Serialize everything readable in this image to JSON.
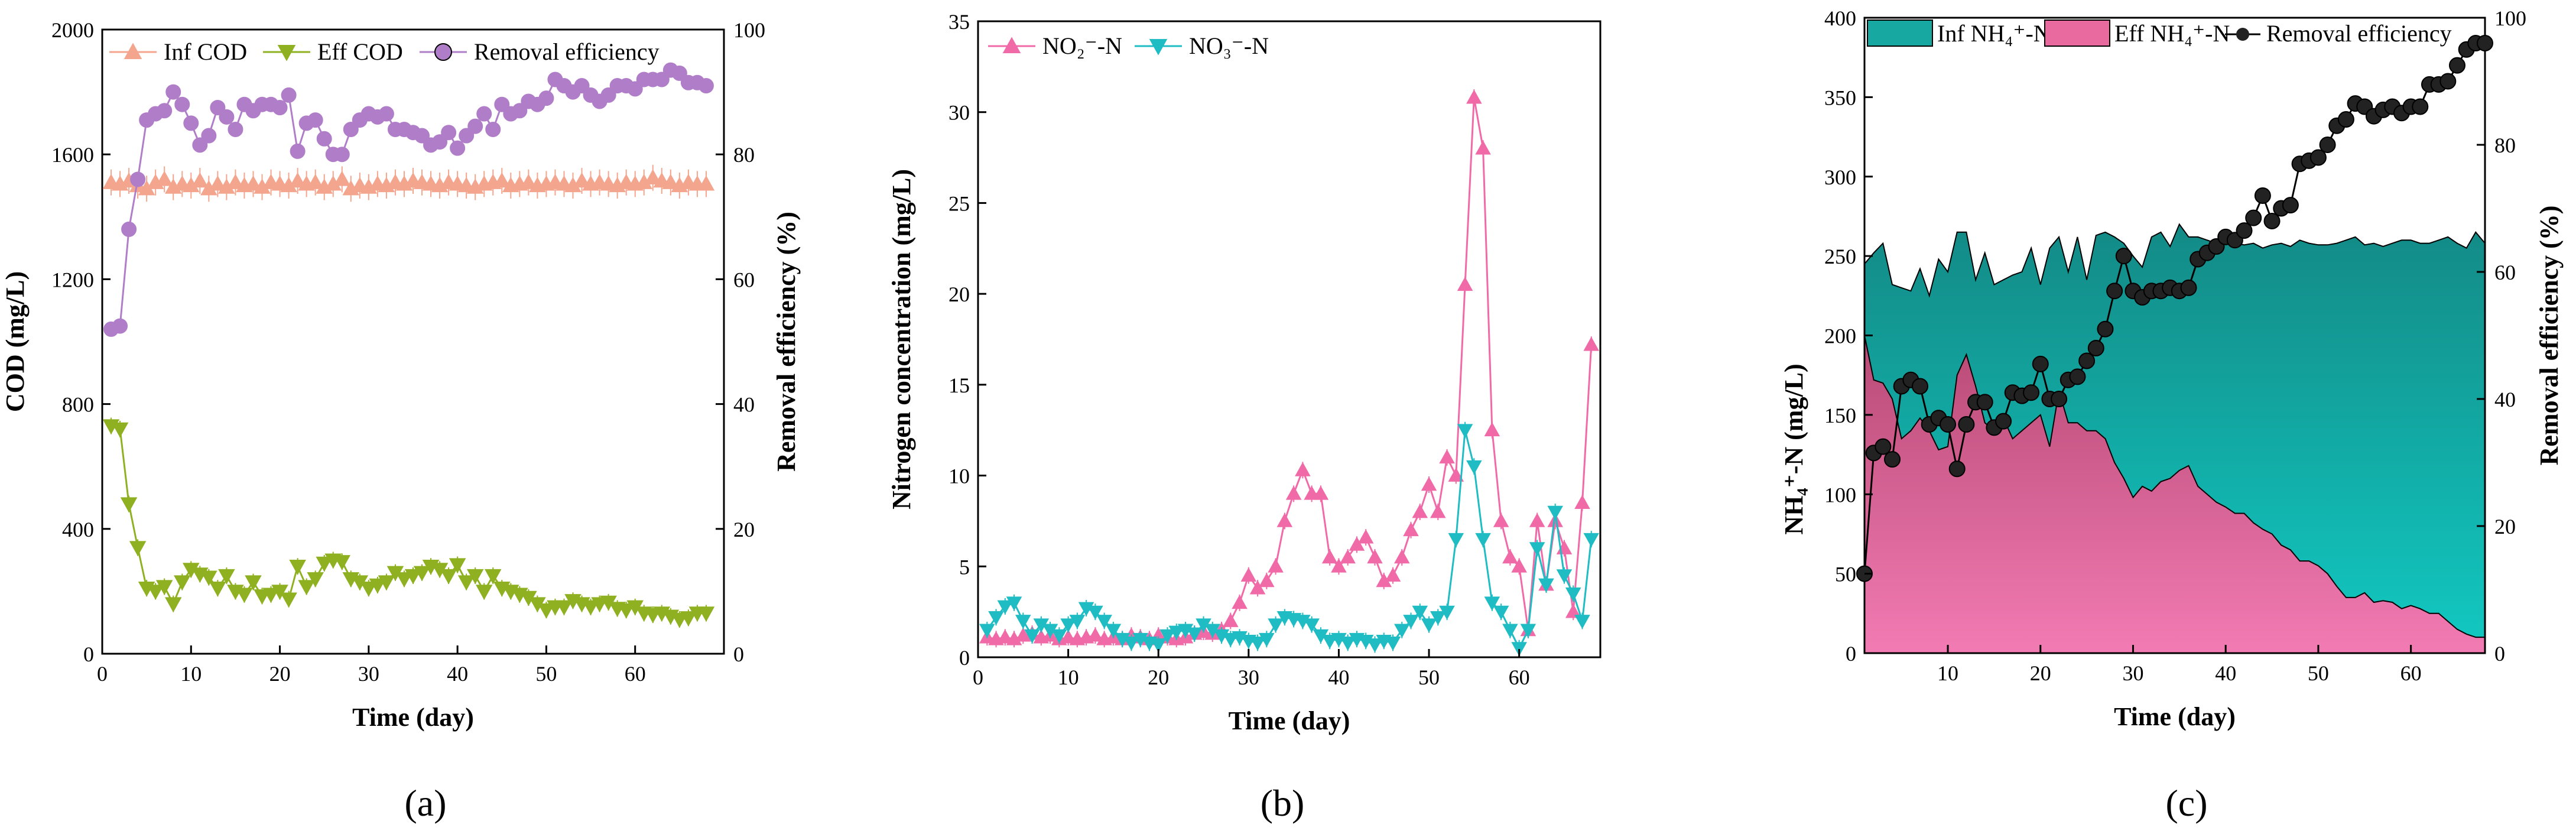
{
  "chart_data": [
    {
      "id": "a",
      "type": "line",
      "panel_label": "(a)",
      "xlabel": "Time (day)",
      "ylabel": "COD (mg/L)",
      "y2label": "Removal efficiency (%)",
      "xlim": [
        0,
        70
      ],
      "ylim": [
        0,
        2000
      ],
      "y2lim": [
        0,
        100
      ],
      "xticks": [
        0,
        10,
        20,
        30,
        40,
        50,
        60
      ],
      "yticks": [
        0,
        400,
        800,
        1200,
        1600,
        2000
      ],
      "y2ticks": [
        0,
        20,
        40,
        60,
        80,
        100
      ],
      "legend": [
        "Inf COD",
        "Eff COD",
        "Removal efficiency"
      ],
      "colors": {
        "inf": "#f4a58e",
        "eff": "#8fb021",
        "rem": "#b07ec8"
      },
      "x": [
        1,
        2,
        3,
        4,
        5,
        6,
        7,
        8,
        9,
        10,
        11,
        12,
        13,
        14,
        15,
        16,
        17,
        18,
        19,
        20,
        21,
        22,
        23,
        24,
        25,
        26,
        27,
        28,
        29,
        30,
        31,
        32,
        33,
        34,
        35,
        36,
        37,
        38,
        39,
        40,
        41,
        42,
        43,
        44,
        45,
        46,
        47,
        48,
        49,
        50,
        51,
        52,
        53,
        54,
        55,
        56,
        57,
        58,
        59,
        60,
        61,
        62,
        63,
        64,
        65,
        66,
        67,
        68
      ],
      "series": [
        {
          "name": "Inf COD",
          "axis": "left",
          "marker": "triangle-up",
          "values": [
            1510,
            1505,
            1515,
            1500,
            1490,
            1510,
            1520,
            1495,
            1505,
            1500,
            1515,
            1490,
            1505,
            1495,
            1510,
            1500,
            1505,
            1495,
            1510,
            1505,
            1500,
            1515,
            1505,
            1510,
            1495,
            1505,
            1520,
            1490,
            1500,
            1495,
            1505,
            1500,
            1510,
            1505,
            1515,
            1510,
            1505,
            1500,
            1510,
            1505,
            1500,
            1495,
            1505,
            1510,
            1515,
            1500,
            1505,
            1510,
            1500,
            1505,
            1510,
            1505,
            1500,
            1515,
            1505,
            1510,
            1505,
            1500,
            1510,
            1505,
            1510,
            1525,
            1515,
            1510,
            1500,
            1510,
            1505,
            1505
          ]
        },
        {
          "name": "Eff COD",
          "axis": "left",
          "marker": "triangle-down",
          "values": [
            730,
            720,
            480,
            340,
            210,
            200,
            215,
            160,
            230,
            270,
            255,
            245,
            210,
            250,
            200,
            190,
            230,
            185,
            190,
            200,
            175,
            280,
            215,
            240,
            290,
            300,
            295,
            240,
            230,
            210,
            220,
            230,
            260,
            240,
            250,
            260,
            280,
            270,
            250,
            285,
            230,
            250,
            200,
            250,
            210,
            200,
            190,
            180,
            160,
            140,
            150,
            150,
            170,
            160,
            150,
            160,
            165,
            145,
            140,
            150,
            130,
            125,
            130,
            120,
            110,
            115,
            130,
            130
          ]
        },
        {
          "name": "Removal efficiency",
          "axis": "right",
          "marker": "circle",
          "values": [
            52,
            52.5,
            68,
            76,
            85.5,
            86.5,
            87,
            90,
            88,
            85,
            81.5,
            83,
            87.5,
            86,
            84,
            88,
            87,
            88,
            88,
            87.5,
            89.5,
            80.5,
            85,
            85.5,
            82.5,
            80,
            80,
            84,
            85.5,
            86.5,
            86,
            86.5,
            84,
            84,
            83.5,
            83,
            81.5,
            82,
            83.5,
            81,
            83,
            84.5,
            86.5,
            84,
            88,
            86.5,
            87,
            88.5,
            88,
            89,
            92,
            91,
            90,
            91,
            89.5,
            88.5,
            89.5,
            91,
            91,
            90.5,
            92,
            92,
            92,
            93.5,
            93,
            91.5,
            91.5,
            91
          ]
        }
      ]
    },
    {
      "id": "b",
      "type": "line",
      "panel_label": "(b)",
      "xlabel": "Time (day)",
      "ylabel": "Nitrogen concentration (mg/L)",
      "xlim": [
        0,
        69
      ],
      "ylim": [
        0,
        35
      ],
      "xticks": [
        0,
        10,
        20,
        30,
        40,
        50,
        60
      ],
      "yticks": [
        0,
        5,
        10,
        15,
        20,
        25,
        30,
        35
      ],
      "legend": [
        "NO₂⁻-N",
        "NO₃⁻-N"
      ],
      "colors": {
        "no2": "#f06aa8",
        "no3": "#1fbcc4"
      },
      "x": [
        1,
        2,
        3,
        4,
        5,
        6,
        7,
        8,
        9,
        10,
        11,
        12,
        13,
        14,
        15,
        16,
        17,
        18,
        19,
        20,
        21,
        22,
        23,
        24,
        25,
        26,
        27,
        28,
        29,
        30,
        31,
        32,
        33,
        34,
        35,
        36,
        37,
        38,
        39,
        40,
        41,
        42,
        43,
        44,
        45,
        46,
        47,
        48,
        49,
        50,
        51,
        52,
        53,
        54,
        55,
        56,
        57,
        58,
        59,
        60,
        61,
        62,
        63,
        64,
        65,
        66,
        67,
        68
      ],
      "series": [
        {
          "name": "NO₂⁻-N",
          "marker": "triangle-up",
          "values": [
            1.1,
            1.0,
            1.1,
            1.0,
            1.2,
            1.3,
            1.1,
            1.2,
            1.0,
            1.1,
            1.0,
            1.1,
            1.2,
            1.0,
            1.1,
            1.0,
            1.2,
            1.1,
            1.0,
            1.2,
            1.1,
            1.0,
            1.1,
            1.3,
            1.4,
            1.3,
            1.5,
            2.0,
            3.0,
            4.5,
            3.8,
            4.2,
            5.0,
            7.5,
            9.0,
            10.3,
            9.0,
            9.0,
            5.5,
            5.0,
            5.5,
            6.2,
            6.6,
            5.5,
            4.2,
            4.5,
            5.5,
            7.0,
            8.0,
            9.5,
            8.0,
            11.0,
            10.0,
            20.5,
            30.8,
            28.0,
            12.5,
            7.5,
            5.5,
            5.0,
            1.5,
            7.5,
            4.0,
            7.5,
            6.0,
            2.5,
            8.5,
            17.2
          ]
        },
        {
          "name": "NO₃⁻-N",
          "marker": "triangle-down",
          "values": [
            1.5,
            2.2,
            2.8,
            3.0,
            2.0,
            1.2,
            1.8,
            1.5,
            1.2,
            1.8,
            2.0,
            2.7,
            2.5,
            2.0,
            1.5,
            1.0,
            0.8,
            1.0,
            0.8,
            0.7,
            1.2,
            1.4,
            1.5,
            1.3,
            1.8,
            1.5,
            1.2,
            1.0,
            1.1,
            0.9,
            0.8,
            1.0,
            1.8,
            2.2,
            2.1,
            2.0,
            1.8,
            1.2,
            0.9,
            1.0,
            0.8,
            1.0,
            0.9,
            0.7,
            0.9,
            0.8,
            1.5,
            2.0,
            2.5,
            1.8,
            2.2,
            2.5,
            6.5,
            12.5,
            10.5,
            6.5,
            3.0,
            2.5,
            1.5,
            0.5,
            1.5,
            6.0,
            4.0,
            8.0,
            4.5,
            3.5,
            2.0,
            6.5
          ]
        }
      ]
    },
    {
      "id": "c",
      "type": "area",
      "panel_label": "(c)",
      "xlabel": "Time (day)",
      "ylabel": "NH₄⁺-N (mg/L)",
      "y2label": "Removal efficiency (%)",
      "xlim": [
        1,
        68
      ],
      "ylim": [
        0,
        400
      ],
      "y2lim": [
        0,
        100
      ],
      "xticks": [
        10,
        20,
        30,
        40,
        50,
        60
      ],
      "yticks": [
        0,
        50,
        100,
        150,
        200,
        250,
        300,
        350,
        400
      ],
      "y2ticks": [
        0,
        20,
        40,
        60,
        80,
        100
      ],
      "legend": [
        "Inf NH₄⁺-N",
        "Eff NH₄⁺-N",
        "Removal efficiency"
      ],
      "colors": {
        "inf": "#17a8a2",
        "eff": "#e86a9e",
        "rem": "#000000"
      },
      "x": [
        1,
        2,
        3,
        4,
        5,
        6,
        7,
        8,
        9,
        10,
        11,
        12,
        13,
        14,
        15,
        16,
        17,
        18,
        19,
        20,
        21,
        22,
        23,
        24,
        25,
        26,
        27,
        28,
        29,
        30,
        31,
        32,
        33,
        34,
        35,
        36,
        37,
        38,
        39,
        40,
        41,
        42,
        43,
        44,
        45,
        46,
        47,
        48,
        49,
        50,
        51,
        52,
        53,
        54,
        55,
        56,
        57,
        58,
        59,
        60,
        61,
        62,
        63,
        64,
        65,
        66,
        67,
        68
      ],
      "series": [
        {
          "name": "Inf NH₄⁺-N",
          "axis": "left",
          "values": [
            245,
            252,
            258,
            232,
            230,
            228,
            242,
            225,
            248,
            240,
            265,
            265,
            235,
            252,
            232,
            235,
            238,
            240,
            255,
            232,
            255,
            262,
            240,
            262,
            235,
            263,
            265,
            262,
            258,
            250,
            243,
            262,
            265,
            256,
            270,
            262,
            262,
            260,
            258,
            262,
            258,
            257,
            258,
            255,
            257,
            258,
            256,
            260,
            258,
            257,
            257,
            258,
            260,
            262,
            257,
            258,
            256,
            258,
            260,
            260,
            258,
            258,
            260,
            262,
            258,
            255,
            265,
            258
          ]
        },
        {
          "name": "Eff NH₄⁺-N",
          "axis": "left",
          "values": [
            200,
            172,
            170,
            160,
            135,
            140,
            148,
            140,
            128,
            130,
            175,
            188,
            168,
            145,
            140,
            148,
            135,
            140,
            145,
            150,
            130,
            165,
            145,
            145,
            140,
            140,
            135,
            120,
            110,
            98,
            105,
            102,
            108,
            110,
            115,
            118,
            105,
            100,
            95,
            92,
            88,
            88,
            82,
            78,
            75,
            68,
            65,
            58,
            58,
            55,
            50,
            42,
            35,
            35,
            38,
            32,
            33,
            32,
            28,
            30,
            28,
            25,
            25,
            20,
            15,
            12,
            10,
            10
          ]
        },
        {
          "name": "Removal efficiency",
          "axis": "right",
          "marker": "circle",
          "values": [
            12.5,
            31.5,
            32.5,
            30.5,
            42,
            43,
            42,
            36,
            37,
            36,
            29,
            36,
            39.5,
            39.5,
            35.5,
            36.5,
            41,
            40.5,
            41,
            45.5,
            40,
            40,
            43,
            43.5,
            46,
            48,
            51,
            57,
            62.5,
            57,
            56,
            57,
            57,
            57.5,
            57,
            57.5,
            62,
            63,
            64,
            65.5,
            65,
            66.5,
            68.5,
            72,
            68,
            70,
            70.5,
            77,
            77.5,
            78,
            80,
            83,
            84,
            86.5,
            86,
            84.5,
            85.5,
            86,
            85,
            86,
            86,
            89.5,
            89.5,
            90,
            92.5,
            95,
            96,
            96
          ]
        }
      ]
    }
  ]
}
